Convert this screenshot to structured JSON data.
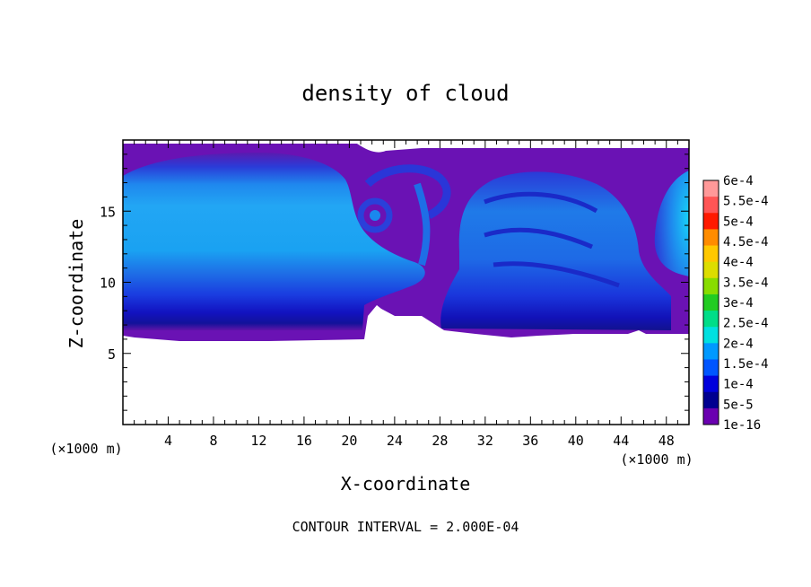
{
  "chart_data": {
    "type": "heatmap",
    "title": "density of cloud",
    "xlabel": "X-coordinate",
    "ylabel": "Z-coordinate",
    "x_unit": "(×1000 m)",
    "y_unit": "(×1000 m)",
    "xlim": [
      0,
      50
    ],
    "ylim": [
      0,
      20
    ],
    "x_ticks": [
      4,
      8,
      12,
      16,
      20,
      24,
      28,
      32,
      36,
      40,
      44,
      48
    ],
    "y_ticks": [
      5,
      10,
      15
    ],
    "footer": "CONTOUR INTERVAL = 2.000E-04",
    "colorbar": {
      "labels": [
        "6e-4",
        "5.5e-4",
        "5e-4",
        "4.5e-4",
        "4e-4",
        "3.5e-4",
        "3e-4",
        "2.5e-4",
        "2e-4",
        "1.5e-4",
        "1e-4",
        "5e-5",
        "1e-16"
      ],
      "colors": [
        "#ff9999",
        "#ff5555",
        "#ff1a00",
        "#ff8c00",
        "#ffc800",
        "#dddd00",
        "#88dd00",
        "#22cc22",
        "#00dd88",
        "#00e0e0",
        "#0099ff",
        "#0055ff",
        "#0000dd",
        "#000090",
        "#6a00b0"
      ]
    },
    "regions": [
      {
        "name": "left-cloud",
        "x_range": [
          0,
          21
        ],
        "z_range": [
          6.3,
          19.5
        ],
        "peak": "1.5e-4"
      },
      {
        "name": "vortex",
        "x_center": 22,
        "z_center": 15.5
      },
      {
        "name": "right-cloud",
        "x_range": [
          27,
          48
        ],
        "z_range": [
          6.3,
          16
        ],
        "peak": "1.5e-4"
      },
      {
        "name": "right-edge-cloud",
        "x_range": [
          47,
          50
        ],
        "z_range": [
          10,
          18
        ],
        "peak": "2e-4"
      }
    ]
  }
}
